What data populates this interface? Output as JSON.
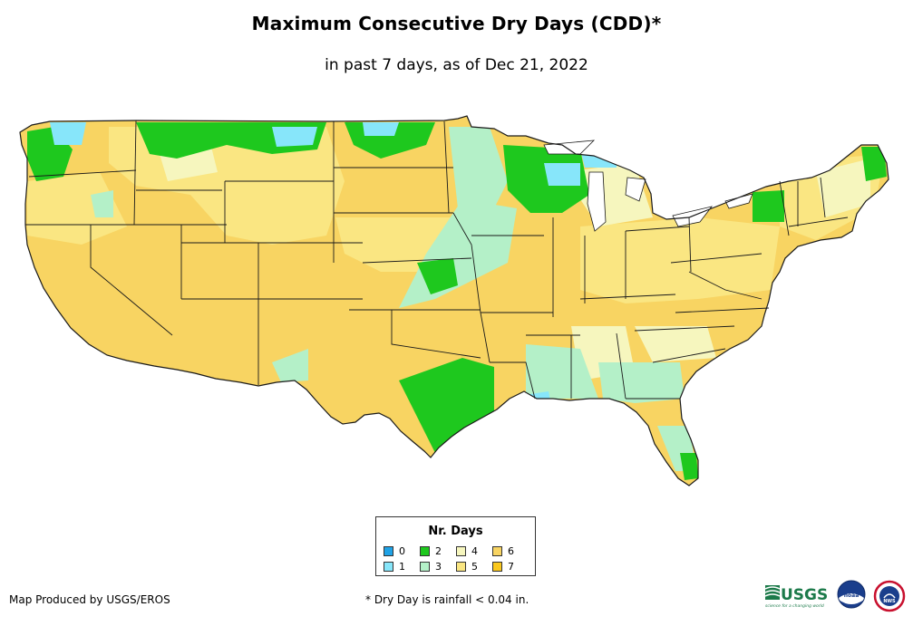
{
  "title": "Maximum Consecutive Dry Days (CDD)*",
  "subtitle": "in past 7 days, as of Dec 21, 2022",
  "legend": {
    "title": "Nr. Days",
    "items": [
      {
        "label": "0",
        "color": "#1fa2e6"
      },
      {
        "label": "2",
        "color": "#1ec81e"
      },
      {
        "label": "4",
        "color": "#f6f6be"
      },
      {
        "label": "6",
        "color": "#f8d462"
      },
      {
        "label": "1",
        "color": "#87e6fa"
      },
      {
        "label": "3",
        "color": "#b4f0c8"
      },
      {
        "label": "5",
        "color": "#fae682"
      },
      {
        "label": "7",
        "color": "#fac81e"
      }
    ]
  },
  "credit": "Map Produced by USGS/EROS",
  "footnote": "* Dry Day is rainfall < 0.04 in.",
  "logos": {
    "usgs": "USGS",
    "usgs_tagline": "science for a changing world",
    "noaa": "noaa",
    "nws": "NWS"
  },
  "colors": {
    "border": "#1a1a1a",
    "base": "#f8d462"
  }
}
